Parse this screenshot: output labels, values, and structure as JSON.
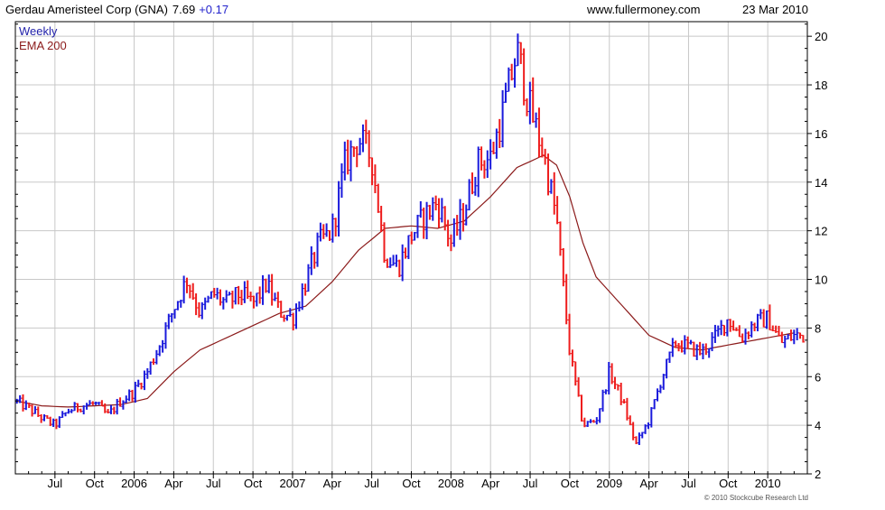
{
  "header": {
    "title_text": "Gerdau Ameristeel Corp (GNA)",
    "price_text": "7.69",
    "change_text": "+0.17",
    "website": "www.fullermoney.com",
    "date": "23 Mar 2010"
  },
  "legend": {
    "weekly_label": "Weekly",
    "ema_label": "EMA 200"
  },
  "footer": {
    "copyright": "© 2010 Stockcube Research Ltd"
  },
  "colors": {
    "up_bar": "#1a1adc",
    "down_bar": "#ee1c1c",
    "ema_line": "#8b1a1a",
    "grid": "#c8c8c8",
    "frame": "#000000",
    "title_text": "#000000",
    "change_text": "#2222cc",
    "legend_weekly": "#2222aa",
    "legend_ema": "#8b1a1a"
  },
  "chart_data": {
    "type": "line",
    "title": "Gerdau Ameristeel Corp (GNA) 7.69 +0.17",
    "xlabel": "",
    "ylabel": "",
    "ylim": [
      2,
      20.6
    ],
    "y_ticks": [
      2,
      4,
      6,
      8,
      10,
      12,
      14,
      16,
      18,
      20
    ],
    "grid": true,
    "legend_position": "top-left",
    "x_tick_labels": [
      "Jul",
      "Oct",
      "2006",
      "Apr",
      "Jul",
      "Oct",
      "2007",
      "Apr",
      "Jul",
      "Oct",
      "2008",
      "Apr",
      "Jul",
      "Oct",
      "2009",
      "Apr",
      "Jul",
      "Oct",
      "2010"
    ],
    "series": [
      {
        "name": "Weekly",
        "style": "OHLC bars, blue up / red down",
        "points": [
          {
            "x": "2005-04",
            "y": 5.0
          },
          {
            "x": "2005-05",
            "y": 4.7
          },
          {
            "x": "2005-06",
            "y": 4.3
          },
          {
            "x": "2005-07",
            "y": 4.0
          },
          {
            "x": "2005-08",
            "y": 4.6
          },
          {
            "x": "2005-09",
            "y": 4.8
          },
          {
            "x": "2005-10",
            "y": 4.9
          },
          {
            "x": "2005-11",
            "y": 4.4
          },
          {
            "x": "2005-12",
            "y": 5.0
          },
          {
            "x": "2006-01",
            "y": 5.4
          },
          {
            "x": "2006-02",
            "y": 6.2
          },
          {
            "x": "2006-03",
            "y": 7.4
          },
          {
            "x": "2006-04",
            "y": 8.8
          },
          {
            "x": "2006-05",
            "y": 10.0
          },
          {
            "x": "2006-06",
            "y": 8.6
          },
          {
            "x": "2006-07",
            "y": 9.4
          },
          {
            "x": "2006-08",
            "y": 9.0
          },
          {
            "x": "2006-09",
            "y": 9.4
          },
          {
            "x": "2006-10",
            "y": 9.0
          },
          {
            "x": "2006-11",
            "y": 9.8
          },
          {
            "x": "2006-12",
            "y": 8.7
          },
          {
            "x": "2007-01",
            "y": 8.4
          },
          {
            "x": "2007-02",
            "y": 9.9
          },
          {
            "x": "2007-03",
            "y": 11.5
          },
          {
            "x": "2007-04",
            "y": 12.0
          },
          {
            "x": "2007-05",
            "y": 14.8
          },
          {
            "x": "2007-06",
            "y": 15.8
          },
          {
            "x": "2007-07",
            "y": 15.0
          },
          {
            "x": "2007-08",
            "y": 11.0
          },
          {
            "x": "2007-09",
            "y": 10.5
          },
          {
            "x": "2007-10",
            "y": 11.8
          },
          {
            "x": "2007-11",
            "y": 12.6
          },
          {
            "x": "2007-12",
            "y": 13.2
          },
          {
            "x": "2008-01",
            "y": 11.5
          },
          {
            "x": "2008-02",
            "y": 12.8
          },
          {
            "x": "2008-03",
            "y": 14.8
          },
          {
            "x": "2008-04",
            "y": 15.0
          },
          {
            "x": "2008-05",
            "y": 17.0
          },
          {
            "x": "2008-06",
            "y": 19.4
          },
          {
            "x": "2008-07",
            "y": 17.0
          },
          {
            "x": "2008-08",
            "y": 15.2
          },
          {
            "x": "2008-09",
            "y": 12.5
          },
          {
            "x": "2008-10",
            "y": 7.0
          },
          {
            "x": "2008-11",
            "y": 4.0
          },
          {
            "x": "2008-12",
            "y": 4.2
          },
          {
            "x": "2009-01",
            "y": 6.2
          },
          {
            "x": "2009-02",
            "y": 5.0
          },
          {
            "x": "2009-03",
            "y": 3.2
          },
          {
            "x": "2009-04",
            "y": 4.2
          },
          {
            "x": "2009-05",
            "y": 6.0
          },
          {
            "x": "2009-06",
            "y": 7.4
          },
          {
            "x": "2009-07",
            "y": 7.2
          },
          {
            "x": "2009-08",
            "y": 7.0
          },
          {
            "x": "2009-09",
            "y": 7.6
          },
          {
            "x": "2009-10",
            "y": 8.4
          },
          {
            "x": "2009-11",
            "y": 7.6
          },
          {
            "x": "2009-12",
            "y": 8.2
          },
          {
            "x": "2010-01",
            "y": 8.4
          },
          {
            "x": "2010-02",
            "y": 7.4
          },
          {
            "x": "2010-03",
            "y": 7.69
          }
        ]
      },
      {
        "name": "EMA 200",
        "style": "smooth dark red line",
        "points": [
          {
            "x": "2005-04",
            "y": 5.0
          },
          {
            "x": "2005-06",
            "y": 4.8
          },
          {
            "x": "2005-08",
            "y": 4.75
          },
          {
            "x": "2005-10",
            "y": 4.8
          },
          {
            "x": "2005-12",
            "y": 4.85
          },
          {
            "x": "2006-02",
            "y": 5.1
          },
          {
            "x": "2006-04",
            "y": 6.2
          },
          {
            "x": "2006-06",
            "y": 7.1
          },
          {
            "x": "2006-08",
            "y": 7.6
          },
          {
            "x": "2006-10",
            "y": 8.1
          },
          {
            "x": "2006-12",
            "y": 8.6
          },
          {
            "x": "2007-02",
            "y": 8.9
          },
          {
            "x": "2007-04",
            "y": 9.9
          },
          {
            "x": "2007-06",
            "y": 11.2
          },
          {
            "x": "2007-08",
            "y": 12.1
          },
          {
            "x": "2007-10",
            "y": 12.2
          },
          {
            "x": "2007-12",
            "y": 12.1
          },
          {
            "x": "2008-02",
            "y": 12.4
          },
          {
            "x": "2008-04",
            "y": 13.4
          },
          {
            "x": "2008-06",
            "y": 14.6
          },
          {
            "x": "2008-08",
            "y": 15.1
          },
          {
            "x": "2008-09",
            "y": 14.7
          },
          {
            "x": "2008-10",
            "y": 13.4
          },
          {
            "x": "2008-11",
            "y": 11.5
          },
          {
            "x": "2008-12",
            "y": 10.1
          },
          {
            "x": "2009-02",
            "y": 8.9
          },
          {
            "x": "2009-04",
            "y": 7.7
          },
          {
            "x": "2009-06",
            "y": 7.2
          },
          {
            "x": "2009-08",
            "y": 7.1
          },
          {
            "x": "2009-10",
            "y": 7.3
          },
          {
            "x": "2009-12",
            "y": 7.5
          },
          {
            "x": "2010-02",
            "y": 7.7
          },
          {
            "x": "2010-03",
            "y": 7.8
          }
        ]
      }
    ]
  }
}
